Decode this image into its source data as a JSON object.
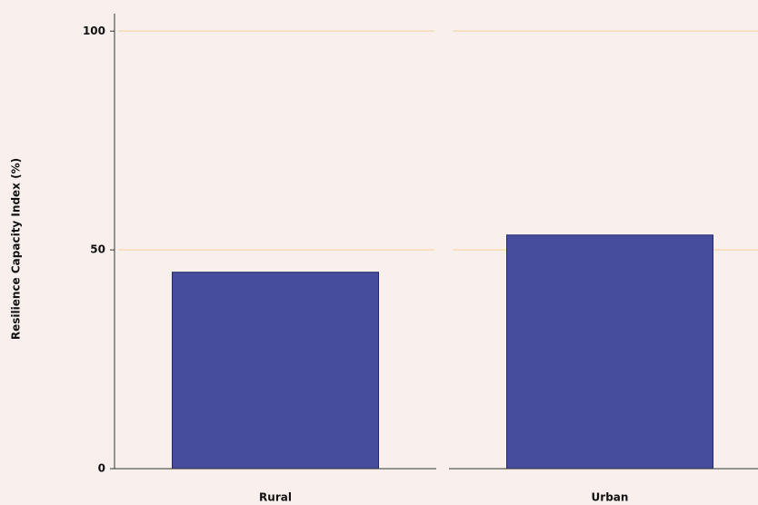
{
  "chart_data": {
    "type": "bar",
    "y_label": "Resilience Capacity Index (%)",
    "categories": [
      "Rural",
      "Urban"
    ],
    "values": [
      44.9,
      53.4
    ],
    "color": "#454d9c",
    "ylim": [
      0,
      104
    ],
    "yticks": [
      0,
      50,
      100
    ],
    "grid": true
  }
}
